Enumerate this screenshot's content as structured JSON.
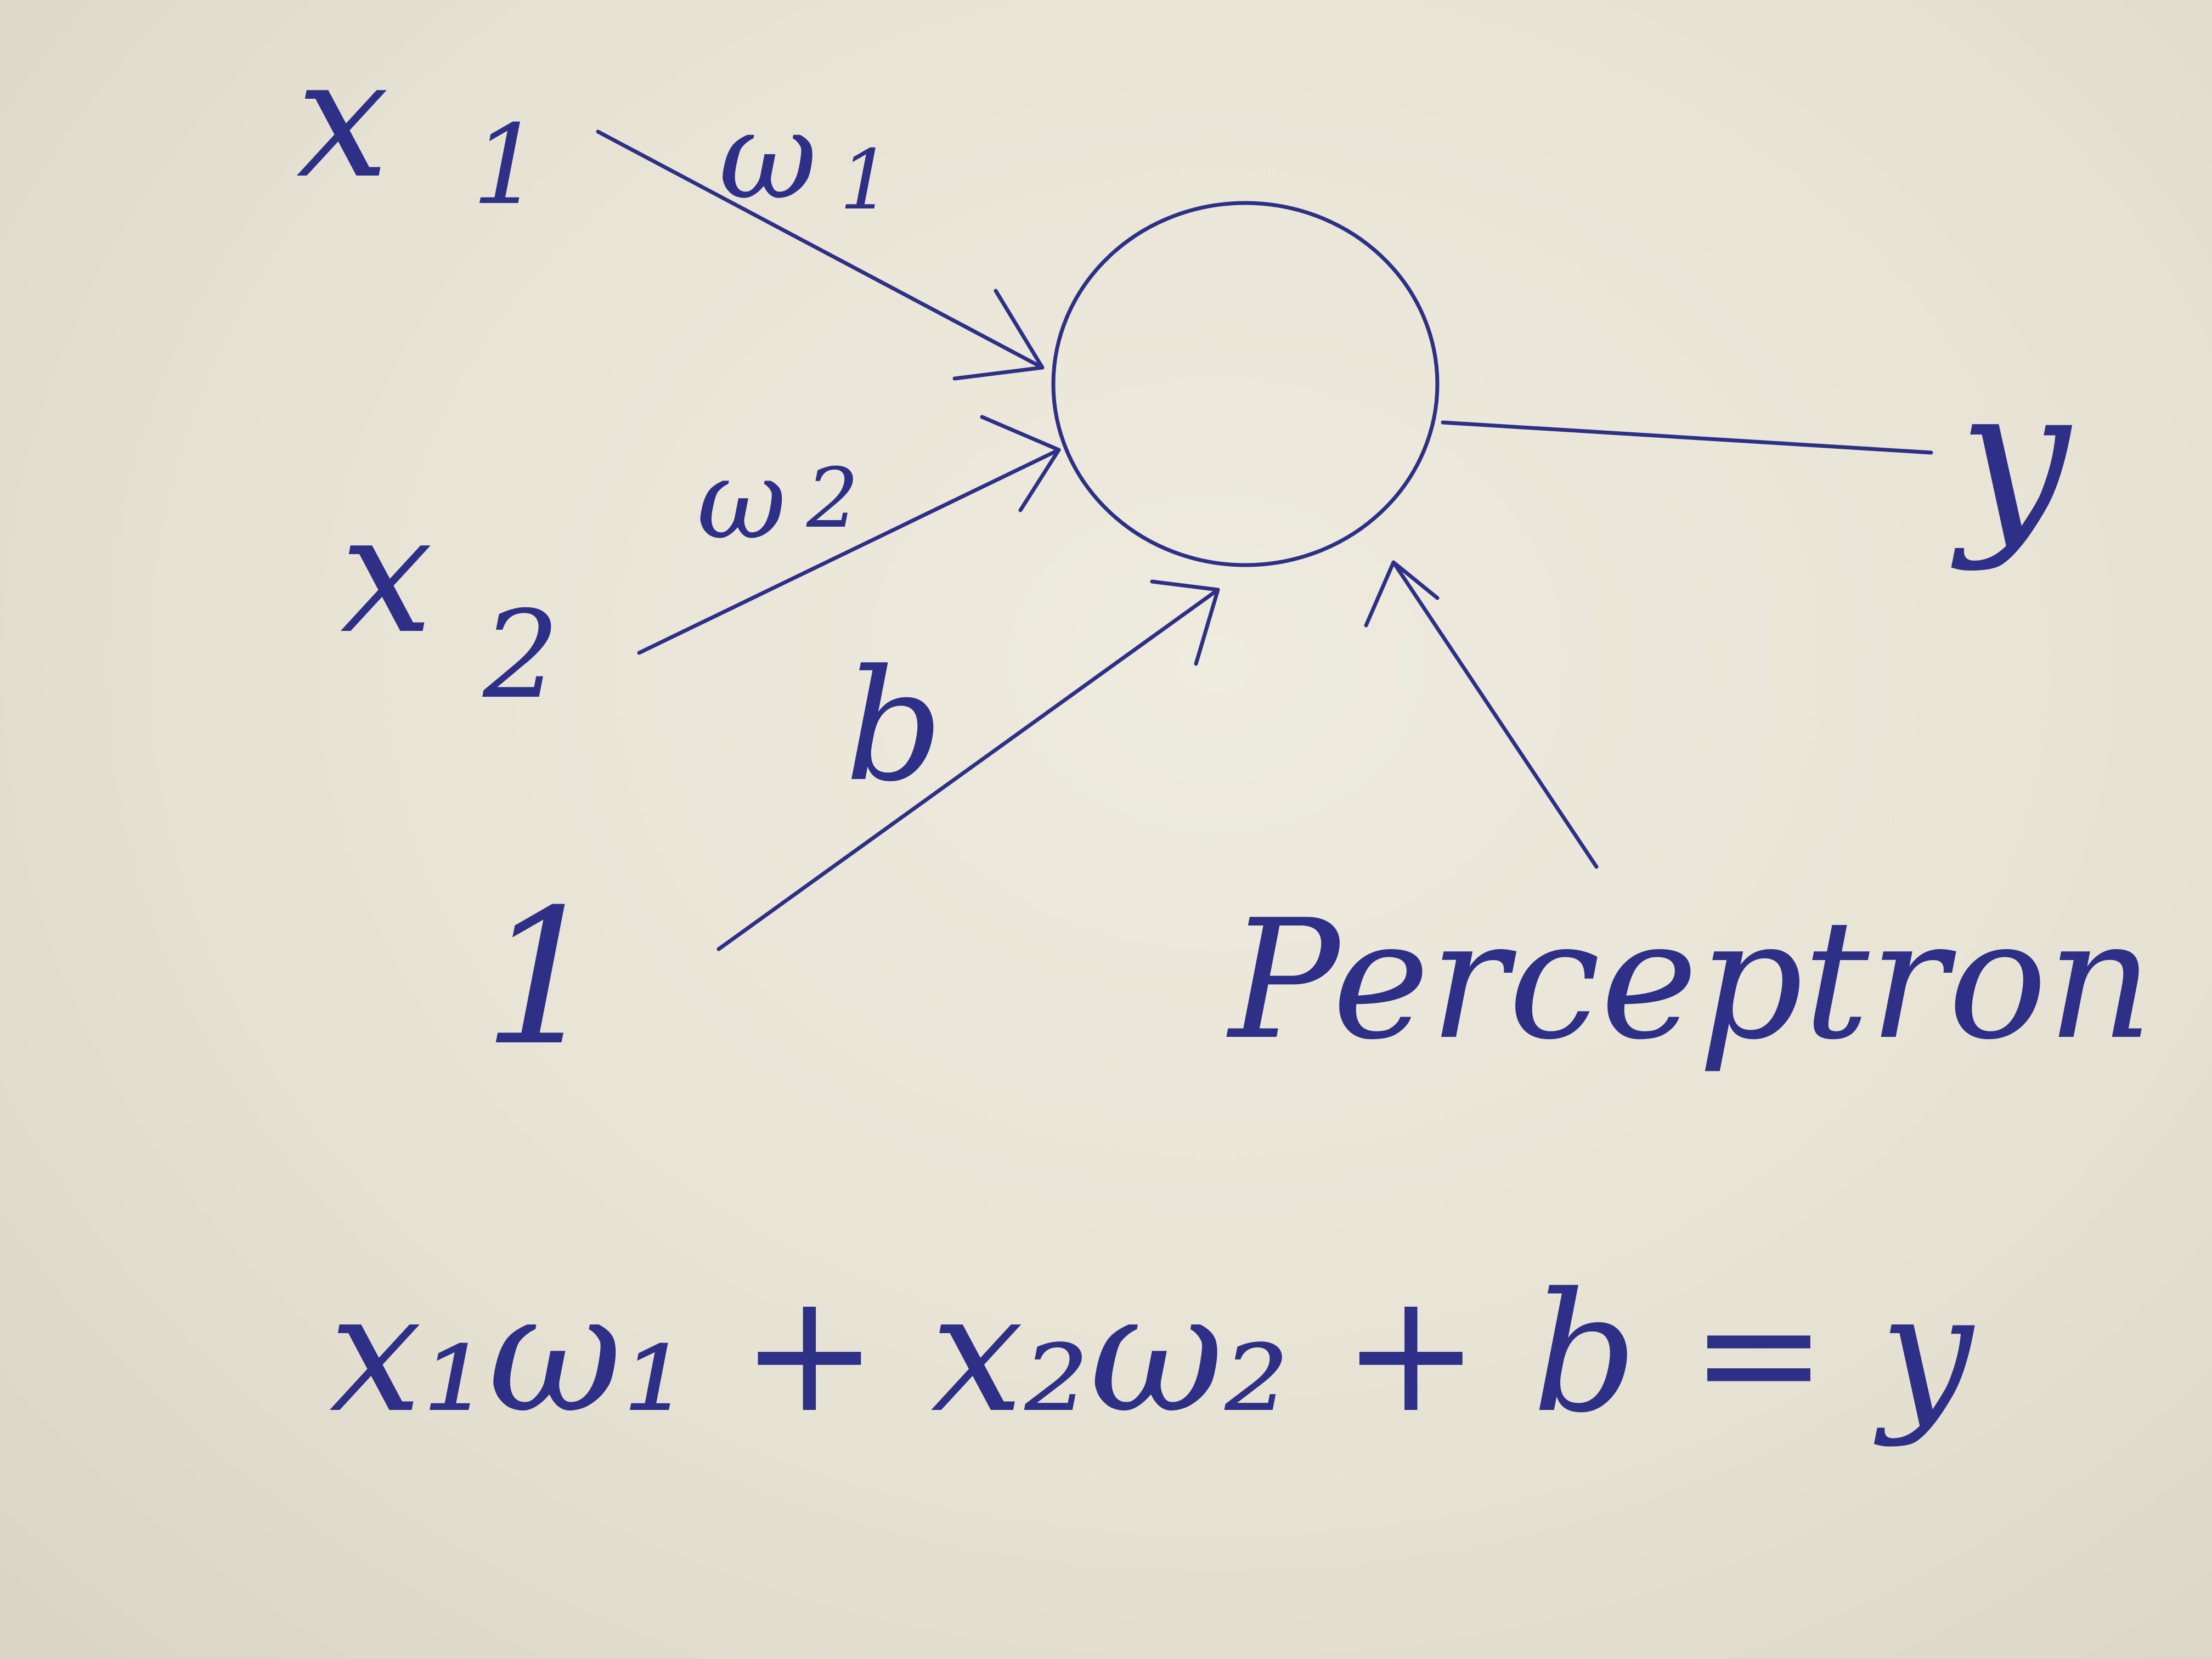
{
  "diagram": {
    "inputs": {
      "x1": "x",
      "x1_sub": "1",
      "x2": "x",
      "x2_sub": "2",
      "bias_input": "1"
    },
    "weights": {
      "w1": "ω",
      "w1_sub": "1",
      "w2": "ω",
      "w2_sub": "2",
      "b": "b"
    },
    "output": "y",
    "node_label": "Perceptron",
    "equation": "x₁ω₁ + x₂ω₂ + b = y"
  },
  "colors": {
    "ink": "#2e2f86",
    "paper": "#e9e6d9"
  }
}
